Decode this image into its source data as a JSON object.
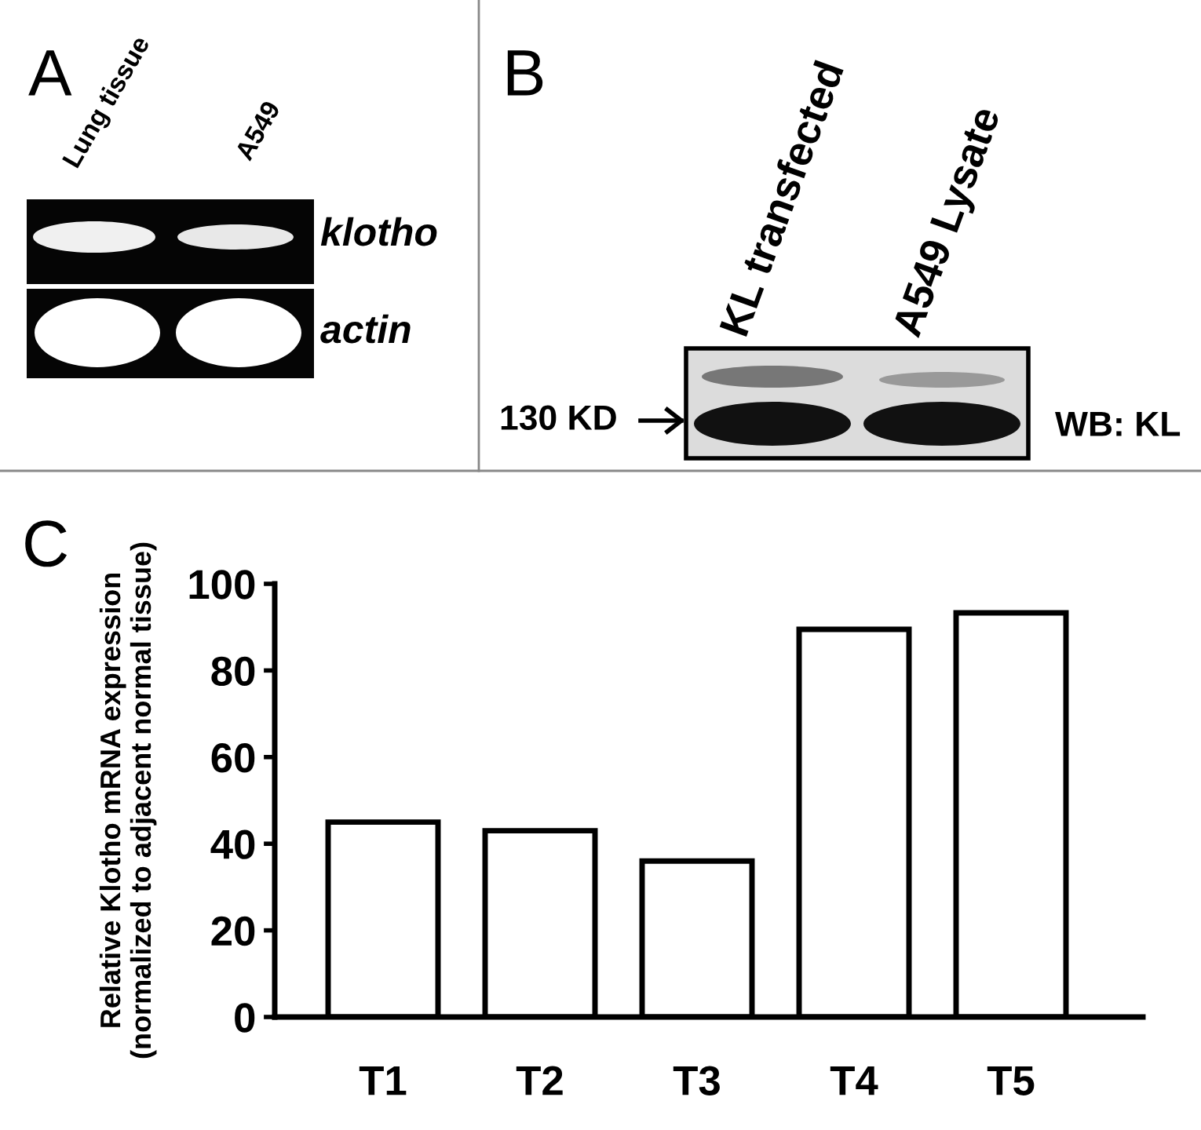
{
  "chart_data": {
    "type": "bar",
    "ylabel": "Relative Klotho mRNA expression\n(normalized to adjacent normal tissue)",
    "categories": [
      "T1",
      "T2",
      "T3",
      "T4",
      "T5"
    ],
    "values": [
      45,
      43,
      36,
      89.5,
      93.3
    ],
    "color": "#ffffff",
    "ylim": [
      0,
      100
    ],
    "yticks": [
      0,
      20,
      40,
      60,
      80,
      100
    ],
    "grid": false,
    "annotations": [
      "A",
      "Lung tissue",
      "A549",
      "klotho",
      "actin",
      "B",
      "KL transfected",
      "A549 Lysate",
      "130 KD",
      "WB: KL",
      "C"
    ]
  }
}
